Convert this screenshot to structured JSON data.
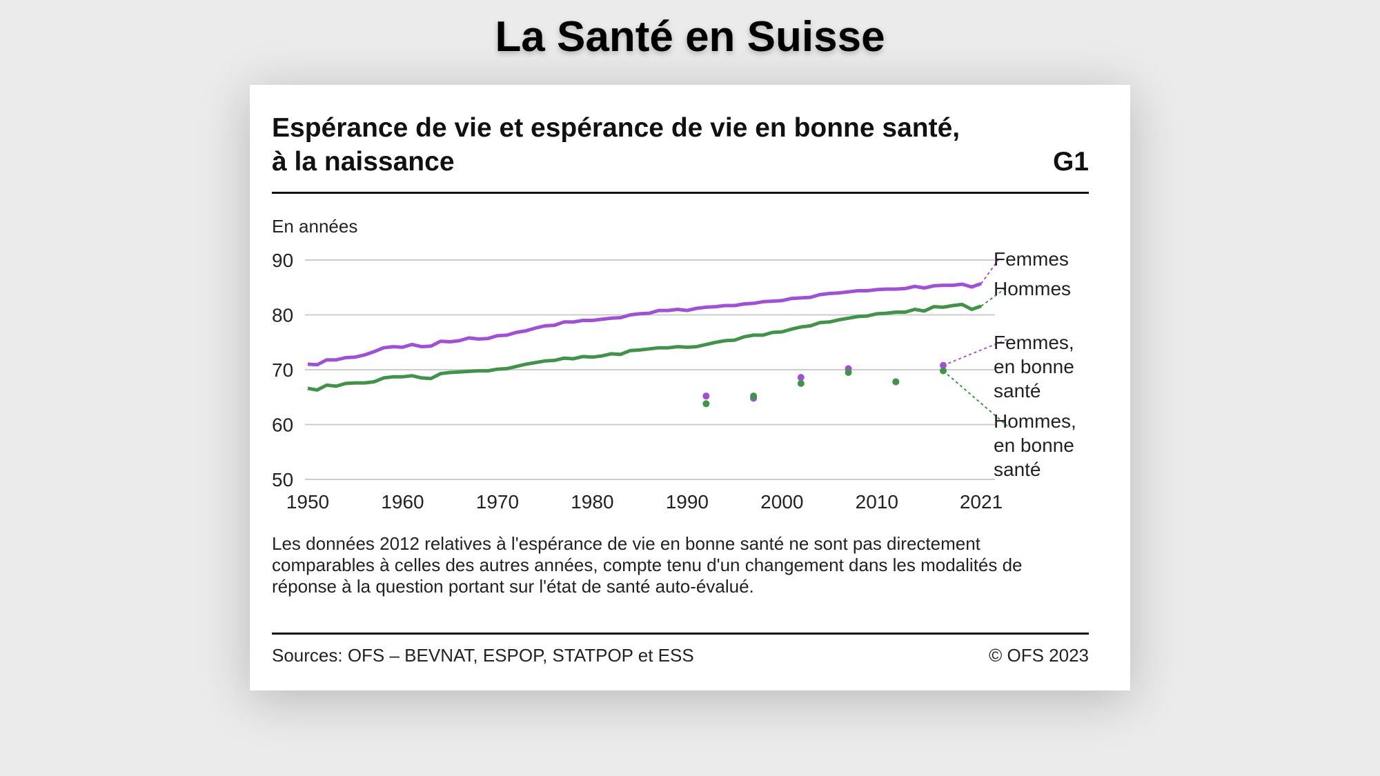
{
  "page_title": "La Santé en Suisse",
  "card": {
    "title_line1": "Espérance de vie et espérance de vie en bonne santé,",
    "title_line2": "à la naissance",
    "figure_id": "G1",
    "note": "Les données 2012 relatives à l'espérance de vie en bonne santé ne sont pas directement comparables à celles des autres années, compte tenu d'un changement dans les modalités de réponse à la question portant sur l'état de santé auto-évalué.",
    "sources": "Sources: OFS – BEVNAT, ESPOP, STATPOP et ESS",
    "copyright": "© OFS 2023"
  },
  "colors": {
    "women": "#a050d8",
    "men": "#3f9447",
    "grid": "#cccccc",
    "text": "#222222"
  },
  "chart_data": {
    "type": "line",
    "title": "Espérance de vie et espérance de vie en bonne santé, à la naissance",
    "ylabel": "En années",
    "xlabel": "",
    "xlim": [
      1950,
      2021
    ],
    "ylim": [
      50,
      90
    ],
    "yticks": [
      90,
      80,
      70,
      60,
      50
    ],
    "xticks": [
      1950,
      1960,
      1970,
      1980,
      1990,
      2000,
      2010,
      2021
    ],
    "grid": true,
    "legend": "right, inline labels",
    "series": [
      {
        "name": "Femmes",
        "kind": "line",
        "color": "#a050d8",
        "x": [
          1950,
          1951,
          1952,
          1953,
          1954,
          1955,
          1956,
          1957,
          1958,
          1959,
          1960,
          1961,
          1962,
          1963,
          1964,
          1965,
          1966,
          1967,
          1968,
          1969,
          1970,
          1971,
          1972,
          1973,
          1974,
          1975,
          1976,
          1977,
          1978,
          1979,
          1980,
          1981,
          1982,
          1983,
          1984,
          1985,
          1986,
          1987,
          1988,
          1989,
          1990,
          1991,
          1992,
          1993,
          1994,
          1995,
          1996,
          1997,
          1998,
          1999,
          2000,
          2001,
          2002,
          2003,
          2004,
          2005,
          2006,
          2007,
          2008,
          2009,
          2010,
          2011,
          2012,
          2013,
          2014,
          2015,
          2016,
          2017,
          2018,
          2019,
          2020,
          2021
        ],
        "values": [
          71.0,
          70.9,
          71.8,
          71.8,
          72.2,
          72.3,
          72.7,
          73.3,
          74.0,
          74.2,
          74.1,
          74.6,
          74.2,
          74.3,
          75.2,
          75.1,
          75.3,
          75.8,
          75.6,
          75.7,
          76.2,
          76.3,
          76.8,
          77.1,
          77.6,
          78.0,
          78.1,
          78.7,
          78.7,
          79.0,
          79.0,
          79.2,
          79.4,
          79.5,
          80.0,
          80.2,
          80.3,
          80.8,
          80.8,
          81.0,
          80.8,
          81.2,
          81.4,
          81.5,
          81.7,
          81.7,
          82.0,
          82.1,
          82.4,
          82.5,
          82.6,
          83.0,
          83.1,
          83.2,
          83.7,
          83.9,
          84.0,
          84.2,
          84.4,
          84.4,
          84.6,
          84.7,
          84.7,
          84.8,
          85.2,
          84.9,
          85.3,
          85.4,
          85.4,
          85.6,
          85.1,
          85.7
        ]
      },
      {
        "name": "Hommes",
        "kind": "line",
        "color": "#3f9447",
        "x": [
          1950,
          1951,
          1952,
          1953,
          1954,
          1955,
          1956,
          1957,
          1958,
          1959,
          1960,
          1961,
          1962,
          1963,
          1964,
          1965,
          1966,
          1967,
          1968,
          1969,
          1970,
          1971,
          1972,
          1973,
          1974,
          1975,
          1976,
          1977,
          1978,
          1979,
          1980,
          1981,
          1982,
          1983,
          1984,
          1985,
          1986,
          1987,
          1988,
          1989,
          1990,
          1991,
          1992,
          1993,
          1994,
          1995,
          1996,
          1997,
          1998,
          1999,
          2000,
          2001,
          2002,
          2003,
          2004,
          2005,
          2006,
          2007,
          2008,
          2009,
          2010,
          2011,
          2012,
          2013,
          2014,
          2015,
          2016,
          2017,
          2018,
          2019,
          2020,
          2021
        ],
        "values": [
          66.6,
          66.3,
          67.2,
          67.0,
          67.5,
          67.6,
          67.6,
          67.8,
          68.5,
          68.7,
          68.7,
          68.9,
          68.5,
          68.4,
          69.3,
          69.5,
          69.6,
          69.7,
          69.8,
          69.8,
          70.1,
          70.2,
          70.6,
          71.0,
          71.3,
          71.6,
          71.7,
          72.1,
          72.0,
          72.4,
          72.3,
          72.5,
          72.9,
          72.8,
          73.5,
          73.6,
          73.8,
          74.0,
          74.0,
          74.2,
          74.1,
          74.2,
          74.6,
          75.0,
          75.3,
          75.4,
          76.0,
          76.3,
          76.3,
          76.8,
          76.9,
          77.4,
          77.8,
          78.0,
          78.6,
          78.7,
          79.1,
          79.4,
          79.7,
          79.8,
          80.2,
          80.3,
          80.5,
          80.5,
          81.0,
          80.7,
          81.5,
          81.4,
          81.7,
          81.9,
          81.0,
          81.6
        ]
      },
      {
        "name": "Femmes, en bonne santé",
        "kind": "points",
        "color": "#a050d8",
        "x": [
          1992,
          1997,
          2002,
          2007,
          2012,
          2017
        ],
        "values": [
          65.2,
          64.8,
          68.6,
          70.2,
          67.8,
          70.8
        ]
      },
      {
        "name": "Hommes, en bonne santé",
        "kind": "points",
        "color": "#3f9447",
        "x": [
          1992,
          1997,
          2002,
          2007,
          2012,
          2017
        ],
        "values": [
          63.8,
          65.2,
          67.5,
          69.5,
          67.8,
          69.8
        ]
      }
    ],
    "legend_labels": [
      {
        "series": "Femmes",
        "lines": [
          "Femmes"
        ]
      },
      {
        "series": "Hommes",
        "lines": [
          "Hommes"
        ]
      },
      {
        "series": "Femmes, en bonne santé",
        "lines": [
          "Femmes,",
          "en bonne",
          "santé"
        ]
      },
      {
        "series": "Hommes, en bonne santé",
        "lines": [
          "Hommes,",
          "en bonne",
          "santé"
        ]
      }
    ]
  }
}
